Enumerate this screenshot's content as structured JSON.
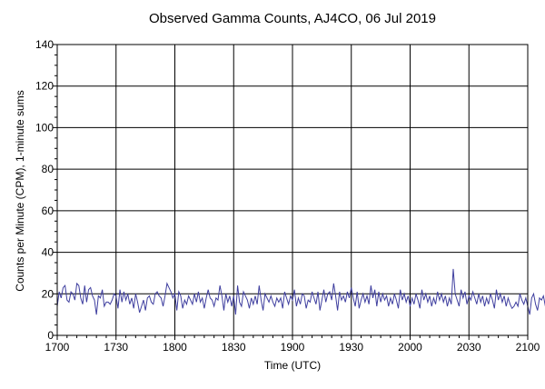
{
  "chart_data": {
    "type": "line",
    "title": "Observed Gamma Counts, AJ4CO, 06 Jul 2019",
    "xlabel": "Time (UTC)",
    "ylabel": "Counts per Minute (CPM), 1-minute sums",
    "x_ticks": [
      "1700",
      "1730",
      "1800",
      "1830",
      "1900",
      "1930",
      "2000",
      "2030",
      "2100"
    ],
    "x_range_minutes": [
      0,
      240
    ],
    "y_ticks": [
      0,
      20,
      40,
      60,
      80,
      100,
      120,
      140
    ],
    "ylim": [
      0,
      140
    ],
    "grid": true,
    "colors": {
      "series": "#3f3f9f",
      "grid": "#000000"
    },
    "series": [
      {
        "x_start_time": "1700",
        "interval_minutes": 1,
        "values": [
          14,
          21,
          18,
          23,
          24,
          17,
          16,
          21,
          20,
          17,
          25,
          24,
          18,
          15,
          24,
          16,
          22,
          23,
          19,
          17,
          10,
          19,
          18,
          22,
          14,
          16,
          16,
          15,
          17,
          20,
          19,
          13,
          22,
          16,
          21,
          17,
          20,
          15,
          18,
          13,
          20,
          16,
          11,
          14,
          17,
          12,
          18,
          19,
          16,
          15,
          20,
          21,
          19,
          18,
          14,
          19,
          25,
          23,
          21,
          18,
          20,
          12,
          21,
          19,
          13,
          17,
          15,
          19,
          17,
          15,
          20,
          16,
          21,
          16,
          18,
          13,
          18,
          22,
          18,
          17,
          14,
          18,
          17,
          24,
          19,
          12,
          20,
          16,
          19,
          14,
          19,
          10,
          24,
          16,
          14,
          21,
          19,
          17,
          13,
          18,
          15,
          19,
          15,
          24,
          17,
          12,
          20,
          18,
          16,
          19,
          16,
          14,
          18,
          16,
          18,
          13,
          21,
          18,
          15,
          19,
          17,
          22,
          14,
          18,
          15,
          20,
          19,
          13,
          17,
          16,
          21,
          18,
          15,
          21,
          12,
          17,
          22,
          16,
          20,
          21,
          17,
          25,
          19,
          12,
          21,
          17,
          19,
          16,
          21,
          18,
          23,
          18,
          14,
          21,
          13,
          17,
          20,
          16,
          19,
          15,
          24,
          18,
          22,
          14,
          21,
          16,
          20,
          17,
          19,
          14,
          18,
          15,
          20,
          17,
          13,
          22,
          17,
          20,
          16,
          19,
          14,
          18,
          15,
          20,
          17,
          13,
          22,
          17,
          20,
          16,
          19,
          14,
          18,
          15,
          21,
          17,
          20,
          16,
          19,
          14,
          18,
          15,
          32,
          20,
          17,
          14,
          22,
          18,
          21,
          15,
          19,
          17,
          21,
          18,
          15,
          20,
          16,
          19,
          14,
          18,
          15,
          20,
          17,
          13,
          22,
          17,
          20,
          16,
          19,
          14,
          18,
          15,
          13,
          14,
          16,
          14,
          20,
          17,
          15,
          18,
          14,
          10,
          18,
          20,
          15,
          12,
          18,
          17,
          19,
          14
        ]
      }
    ]
  }
}
